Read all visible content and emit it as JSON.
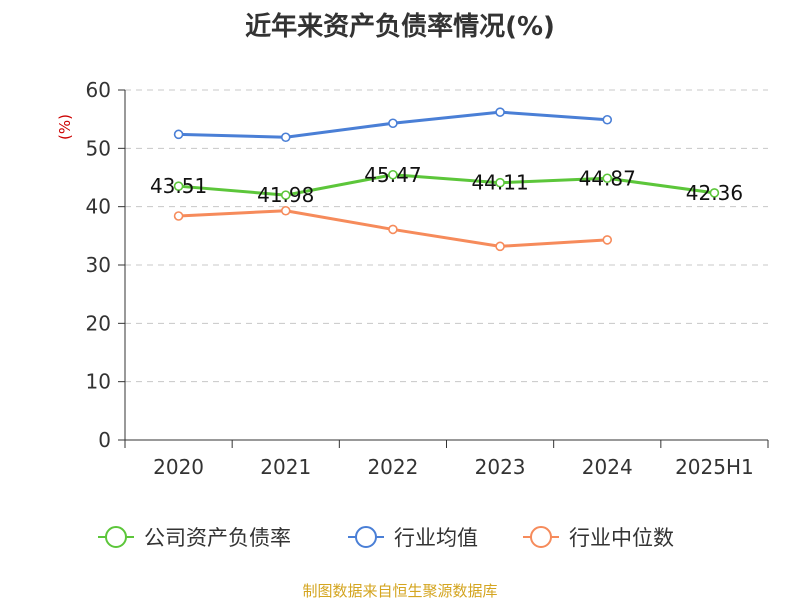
{
  "chart_data": {
    "type": "line",
    "title": "近年来资产负债率情况(%)",
    "ylabel": "(%)",
    "xlabel": "",
    "categories": [
      "2020",
      "2021",
      "2022",
      "2023",
      "2024",
      "2025H1"
    ],
    "ylim": [
      0,
      60
    ],
    "yticks": [
      0,
      10,
      20,
      30,
      40,
      50,
      60
    ],
    "grid": "horizontal-dashed",
    "legend_position": "bottom",
    "series": [
      {
        "name": "公司资产负债率",
        "color": "#5cc63a",
        "values": [
          43.51,
          41.98,
          45.47,
          44.11,
          44.87,
          42.36
        ],
        "labels": [
          "43.51",
          "41.98",
          "45.47",
          "44.11",
          "44.87",
          "42.36"
        ]
      },
      {
        "name": "行业均值",
        "color": "#4a7fd6",
        "values": [
          52.4,
          51.9,
          54.3,
          56.2,
          54.9,
          null
        ]
      },
      {
        "name": "行业中位数",
        "color": "#f68b5b",
        "values": [
          38.4,
          39.3,
          36.1,
          33.2,
          34.3,
          null
        ]
      }
    ]
  },
  "footer": {
    "source": "制图数据来自恒生聚源数据库"
  }
}
